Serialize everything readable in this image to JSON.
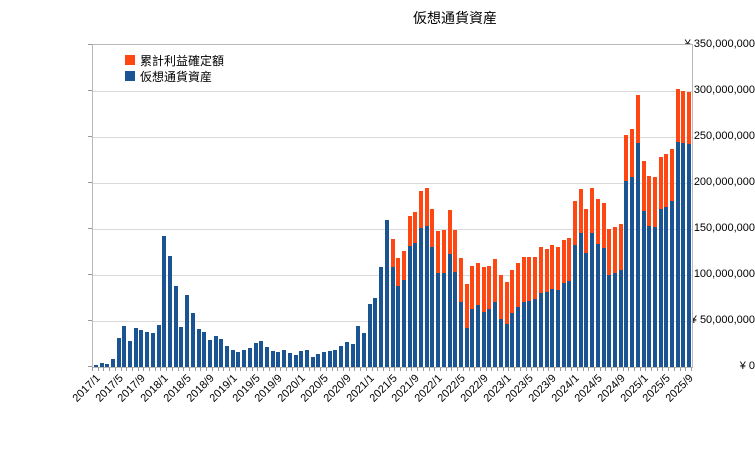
{
  "title": "仮想通貨資産",
  "legend": {
    "items": [
      {
        "label": "累計利益確定額",
        "color": "#ff4713"
      },
      {
        "label": "仮想通貨資産",
        "color": "#1a5493"
      }
    ]
  },
  "y_axis": {
    "labels": [
      "¥ 0",
      "¥ 50,000,000",
      "¥ 100,000,000",
      "¥ 150,000,000",
      "¥ 200,000,000",
      "¥ 250,000,000",
      "¥ 300,000,000",
      "¥ 350,000,000"
    ],
    "values": [
      0,
      50000000,
      100000000,
      150000000,
      200000000,
      250000000,
      300000000,
      350000000
    ]
  },
  "chart_data": {
    "type": "bar",
    "stacked": true,
    "title": "仮想通貨資産",
    "xlabel": "",
    "ylabel": "",
    "ylim": [
      0,
      350000000
    ],
    "grid": true,
    "legend_position": "top-left-inside",
    "unit": 1000000,
    "x_label_every": 4,
    "categories": [
      "2017/1",
      "2017/2",
      "2017/3",
      "2017/4",
      "2017/5",
      "2017/6",
      "2017/7",
      "2017/8",
      "2017/9",
      "2017/10",
      "2017/11",
      "2017/12",
      "2018/1",
      "2018/2",
      "2018/3",
      "2018/4",
      "2018/5",
      "2018/6",
      "2018/7",
      "2018/8",
      "2018/9",
      "2018/10",
      "2018/11",
      "2018/12",
      "2019/1",
      "2019/2",
      "2019/3",
      "2019/4",
      "2019/5",
      "2019/6",
      "2019/7",
      "2019/8",
      "2019/9",
      "2019/10",
      "2019/11",
      "2019/12",
      "2020/1",
      "2020/2",
      "2020/3",
      "2020/4",
      "2020/5",
      "2020/6",
      "2020/7",
      "2020/8",
      "2020/9",
      "2020/10",
      "2020/11",
      "2020/12",
      "2021/1",
      "2021/2",
      "2021/3",
      "2021/4",
      "2021/5",
      "2021/6",
      "2021/7",
      "2021/8",
      "2021/9",
      "2021/10",
      "2021/11",
      "2021/12",
      "2022/1",
      "2022/2",
      "2022/3",
      "2022/4",
      "2022/5",
      "2022/6",
      "2022/7",
      "2022/8",
      "2022/9",
      "2022/10",
      "2022/11",
      "2022/12",
      "2023/1",
      "2023/2",
      "2023/3",
      "2023/4",
      "2023/5",
      "2023/6",
      "2023/7",
      "2023/8",
      "2023/9",
      "2023/10",
      "2023/11",
      "2023/12",
      "2024/1",
      "2024/2",
      "2024/3",
      "2024/4",
      "2024/5",
      "2024/6",
      "2024/7",
      "2024/8",
      "2024/9",
      "2024/10",
      "2024/11",
      "2024/12",
      "2025/1",
      "2025/2",
      "2025/3",
      "2025/4",
      "2025/5",
      "2025/6",
      "2025/7",
      "2025/8",
      "2025/9"
    ],
    "series": [
      {
        "name": "仮想通貨資産",
        "color": "#1a5493",
        "values_millions": [
          2,
          4.5,
          3.5,
          8.5,
          31,
          45,
          28,
          42,
          40,
          38.5,
          37,
          46,
          142,
          121,
          88.5,
          44,
          78,
          59,
          41,
          38,
          29,
          34,
          30,
          23,
          19,
          16,
          19,
          20.5,
          26,
          28,
          22,
          17,
          16,
          18,
          15,
          13.5,
          17,
          18.5,
          11,
          14,
          16,
          17,
          18.5,
          23,
          27.5,
          24.5,
          45,
          37,
          68,
          75.5,
          109,
          160,
          109,
          88,
          95,
          131,
          135,
          151,
          153,
          130,
          102,
          102,
          123,
          103,
          70.5,
          42.5,
          63,
          67,
          60,
          63,
          71,
          52.5,
          47,
          59,
          65,
          71,
          72,
          74,
          80,
          81,
          85,
          84,
          91,
          93,
          133,
          146,
          124,
          146,
          134,
          129.5,
          100.5,
          102.5,
          105.5,
          202,
          207,
          244,
          170,
          153,
          152,
          172,
          174,
          180,
          245,
          243,
          242
        ]
      },
      {
        "name": "累計利益確定額",
        "color": "#ff4713",
        "values_millions": [
          0,
          0,
          0,
          0,
          0,
          0,
          0,
          0,
          0,
          0,
          0,
          0,
          0,
          0,
          0,
          0,
          0,
          0,
          0,
          0,
          0,
          0,
          0,
          0,
          0,
          0,
          0,
          0,
          0,
          0,
          0,
          0,
          0,
          0,
          0,
          0,
          0,
          0,
          0,
          0,
          0,
          0,
          0,
          0,
          0,
          0,
          0,
          0,
          0,
          0,
          0,
          0,
          30,
          30,
          31,
          33,
          33,
          40,
          42,
          42,
          46,
          47,
          48,
          46,
          48,
          48,
          47,
          46.5,
          48.5,
          47,
          46,
          48,
          45.5,
          47,
          48,
          48.5,
          47.5,
          45.5,
          50,
          47,
          48,
          47,
          47,
          47,
          47,
          48,
          48,
          49,
          49,
          49,
          50,
          50,
          50,
          50,
          52,
          52,
          54,
          55,
          55,
          56,
          57,
          57,
          57,
          57,
          57
        ]
      }
    ]
  }
}
